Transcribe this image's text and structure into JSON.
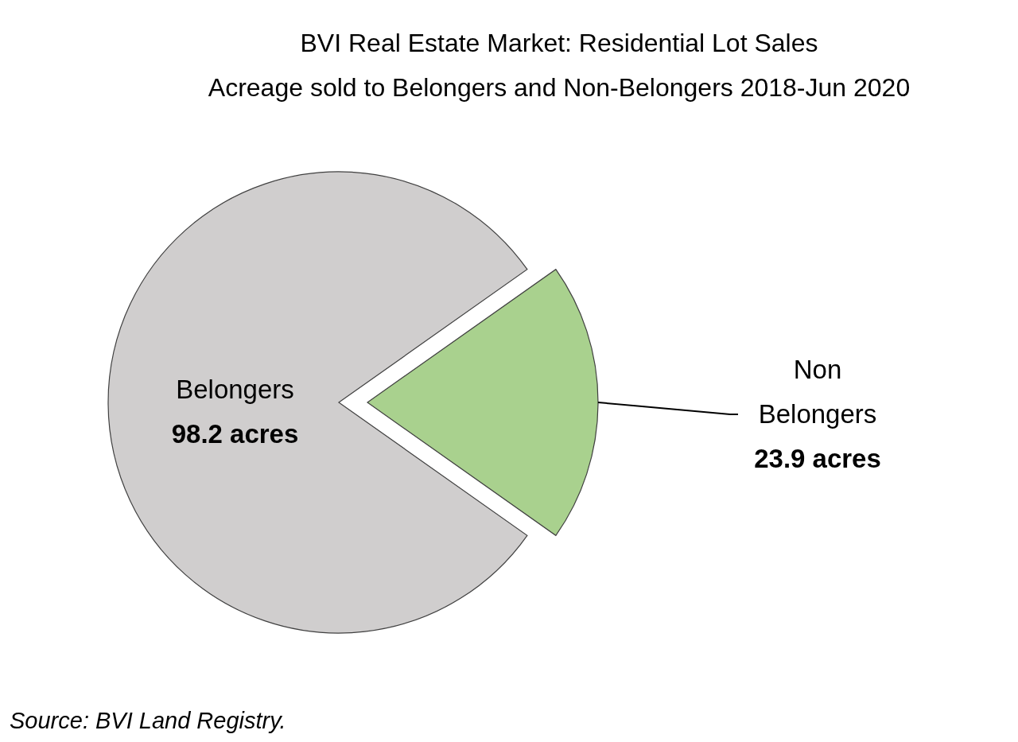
{
  "chart_data": {
    "type": "pie",
    "title": "BVI Real Estate Market: Residential Lot Sales",
    "subtitle": "Acreage sold to Belongers and Non-Belongers 2018-Jun 2020",
    "categories": [
      "Non Belongers",
      "Belongers"
    ],
    "values": [
      23.9,
      98.2
    ],
    "colors": [
      "#a9d18e",
      "#d0cece"
    ],
    "value_labels": [
      "23.9 acres",
      "98.2 acres"
    ],
    "annotations": [
      "Source: BVI Land Registry."
    ]
  }
}
